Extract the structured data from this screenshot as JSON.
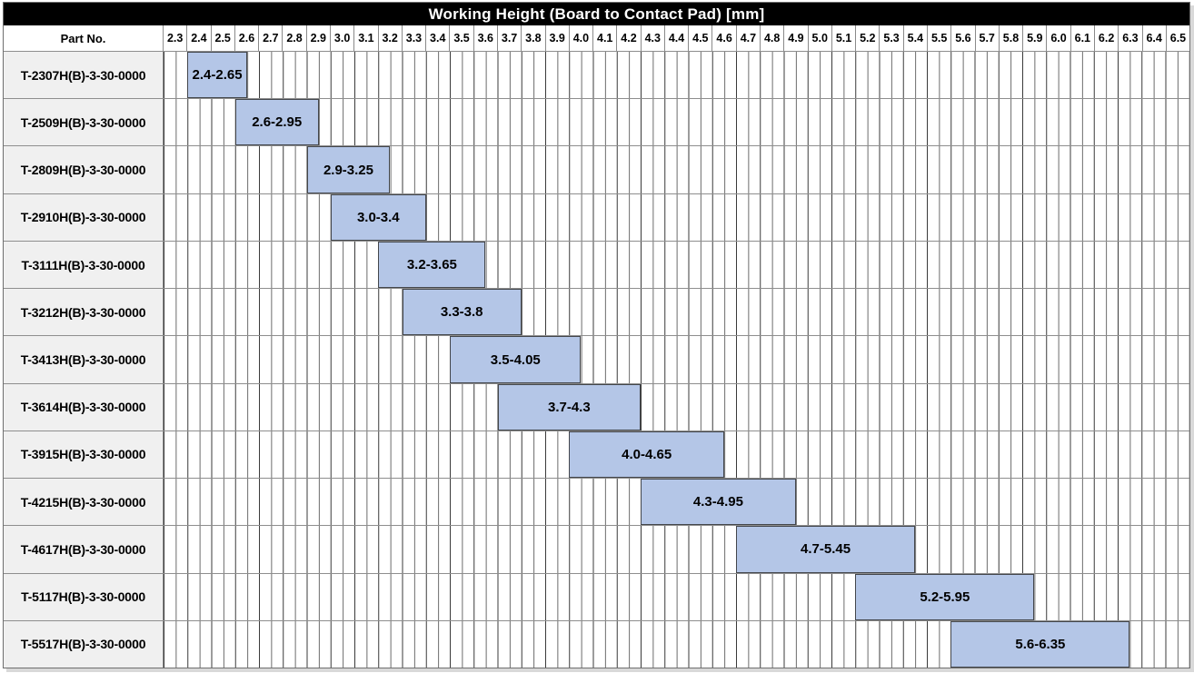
{
  "title": "Working Height (Board to Contact Pad) [mm]",
  "header": {
    "part_no_label": "Part No."
  },
  "colors": {
    "bar_fill": "#b4c6e7",
    "bar_border": "#43464b",
    "title_bg": "#000000",
    "title_fg": "#ffffff",
    "part_cell_bg": "#f0f0f0",
    "grid_major_line": "#383838",
    "grid_minor_line": "#6b6b6b",
    "row_border": "#8e8e8e"
  },
  "chart_data": {
    "type": "bar",
    "subtype": "horizontal-range-gantt",
    "title": "Working Height (Board to Contact Pad) [mm]",
    "xlabel": "Working Height (Board to Contact Pad) [mm]",
    "ylabel": "Part No.",
    "xlim": [
      2.3,
      6.6
    ],
    "x_tick_step": 0.1,
    "x_minor_step": 0.05,
    "grid": true,
    "legend": false,
    "x_tick_labels": [
      "2.3",
      "2.4",
      "2.5",
      "2.6",
      "2.7",
      "2.8",
      "2.9",
      "3.0",
      "3.1",
      "3.2",
      "3.3",
      "3.4",
      "3.5",
      "3.6",
      "3.7",
      "3.8",
      "3.9",
      "4.0",
      "4.1",
      "4.2",
      "4.3",
      "4.4",
      "4.5",
      "4.6",
      "4.7",
      "4.8",
      "4.9",
      "5.0",
      "5.1",
      "5.2",
      "5.3",
      "5.4",
      "5.5",
      "5.6",
      "5.7",
      "5.8",
      "5.9",
      "6.0",
      "6.1",
      "6.2",
      "6.3",
      "6.4",
      "6.5"
    ],
    "rows": [
      {
        "part_no": "T-2307H(B)-3-30-0000",
        "range_min": 2.4,
        "range_max": 2.65,
        "range_label": "2.4-2.65"
      },
      {
        "part_no": "T-2509H(B)-3-30-0000",
        "range_min": 2.6,
        "range_max": 2.95,
        "range_label": "2.6-2.95"
      },
      {
        "part_no": "T-2809H(B)-3-30-0000",
        "range_min": 2.9,
        "range_max": 3.25,
        "range_label": "2.9-3.25"
      },
      {
        "part_no": "T-2910H(B)-3-30-0000",
        "range_min": 3.0,
        "range_max": 3.4,
        "range_label": "3.0-3.4"
      },
      {
        "part_no": "T-3111H(B)-3-30-0000",
        "range_min": 3.2,
        "range_max": 3.65,
        "range_label": "3.2-3.65"
      },
      {
        "part_no": "T-3212H(B)-3-30-0000",
        "range_min": 3.3,
        "range_max": 3.8,
        "range_label": "3.3-3.8"
      },
      {
        "part_no": "T-3413H(B)-3-30-0000",
        "range_min": 3.5,
        "range_max": 4.05,
        "range_label": "3.5-4.05"
      },
      {
        "part_no": "T-3614H(B)-3-30-0000",
        "range_min": 3.7,
        "range_max": 4.3,
        "range_label": "3.7-4.3"
      },
      {
        "part_no": "T-3915H(B)-3-30-0000",
        "range_min": 4.0,
        "range_max": 4.65,
        "range_label": "4.0-4.65"
      },
      {
        "part_no": "T-4215H(B)-3-30-0000",
        "range_min": 4.3,
        "range_max": 4.95,
        "range_label": "4.3-4.95"
      },
      {
        "part_no": "T-4617H(B)-3-30-0000",
        "range_min": 4.7,
        "range_max": 5.45,
        "range_label": "4.7-5.45"
      },
      {
        "part_no": "T-5117H(B)-3-30-0000",
        "range_min": 5.2,
        "range_max": 5.95,
        "range_label": "5.2-5.95"
      },
      {
        "part_no": "T-5517H(B)-3-30-0000",
        "range_min": 5.6,
        "range_max": 6.35,
        "range_label": "5.6-6.35"
      }
    ]
  }
}
